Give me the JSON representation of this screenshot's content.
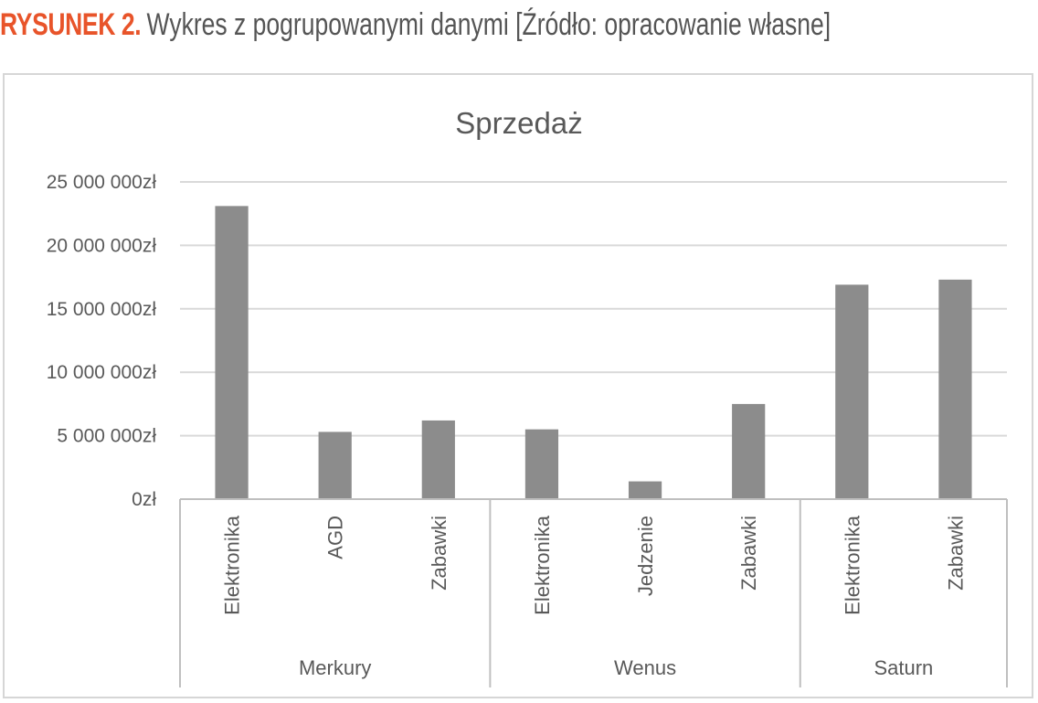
{
  "caption": {
    "label": "RYSUNEK 2.",
    "text": "Wykres z pogrupowanymi danymi [Źródło: opracowanie własne]"
  },
  "colors": {
    "caption_label": "#e8542a",
    "bar": "#8c8c8c",
    "gridline": "#d9d9d9",
    "axis": "#bfbfbf",
    "text": "#595959"
  },
  "chart_data": {
    "type": "bar",
    "title": "Sprzedaż",
    "xlabel": "",
    "ylabel": "",
    "ylim": [
      0,
      25000000
    ],
    "yticks": [
      0,
      5000000,
      10000000,
      15000000,
      20000000,
      25000000
    ],
    "ytick_labels": [
      "0zł",
      "5 000 000zł",
      "10 000 000zł",
      "15 000 000zł",
      "20 000 000zł",
      "25 000 000zł"
    ],
    "grid": true,
    "legend": "none",
    "groups": [
      {
        "name": "Merkury",
        "categories": [
          "Elektronika",
          "AGD",
          "Zabawki"
        ],
        "values": [
          23100000,
          5300000,
          6200000
        ]
      },
      {
        "name": "Wenus",
        "categories": [
          "Elektronika",
          "Jedzenie",
          "Zabawki"
        ],
        "values": [
          5500000,
          1400000,
          7500000
        ]
      },
      {
        "name": "Saturn",
        "categories": [
          "Elektronika",
          "Zabawki"
        ],
        "values": [
          16900000,
          17300000
        ]
      }
    ]
  }
}
